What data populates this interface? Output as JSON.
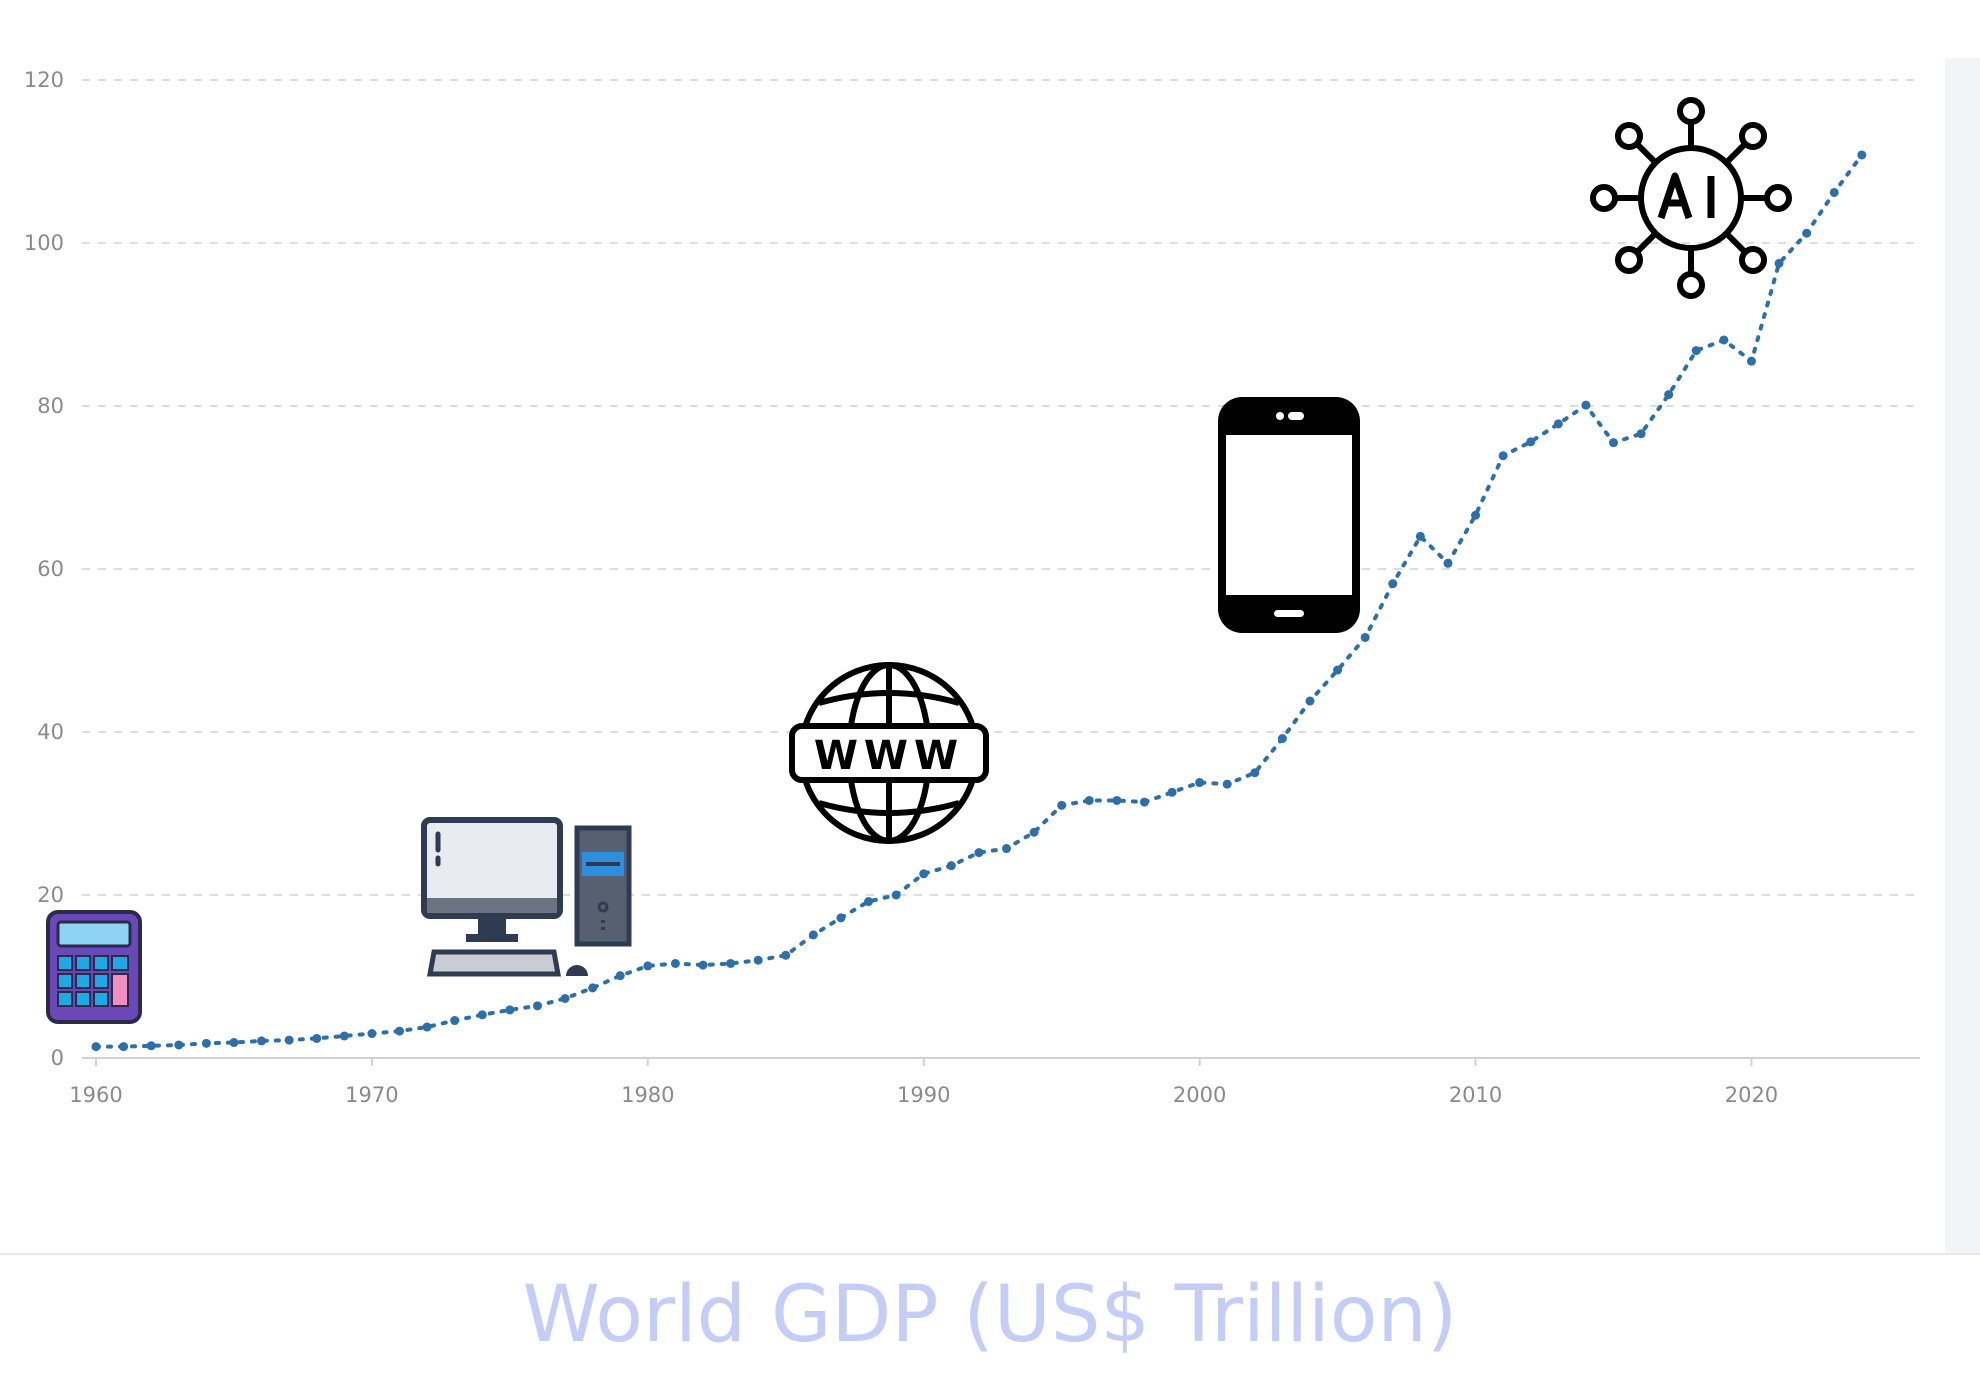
{
  "chart_data": {
    "type": "line",
    "title": "World GDP (US$ Trillion)",
    "xlabel": "",
    "ylabel": "",
    "xlim": [
      1960,
      2026
    ],
    "ylim": [
      0,
      120
    ],
    "x_ticks": [
      "1960",
      "1970",
      "1980",
      "1990",
      "2000",
      "2010",
      "2020"
    ],
    "y_ticks": [
      "0",
      "20",
      "40",
      "60",
      "80",
      "100",
      "120"
    ],
    "grid": true,
    "line_color": "#2e6fa8",
    "series": [
      {
        "x": [
          1960,
          1961,
          1962,
          1963,
          1964,
          1965,
          1966,
          1967,
          1968,
          1969,
          1970,
          1971,
          1972,
          1973,
          1974,
          1975,
          1976,
          1977,
          1978,
          1979,
          1980,
          1981,
          1982,
          1983,
          1984,
          1985,
          1986,
          1987,
          1988,
          1989,
          1990,
          1991,
          1992,
          1993,
          1994,
          1995,
          1996,
          1997,
          1998,
          1999,
          2000,
          2001,
          2002,
          2003,
          2004,
          2005,
          2006,
          2007,
          2008,
          2009,
          2010,
          2011,
          2012,
          2013,
          2014,
          2015,
          2016,
          2017,
          2018,
          2019,
          2020,
          2021,
          2022,
          2023,
          2024
        ],
        "y": [
          1.4,
          1.4,
          1.5,
          1.6,
          1.8,
          1.9,
          2.1,
          2.2,
          2.4,
          2.7,
          3.0,
          3.3,
          3.8,
          4.6,
          5.3,
          5.9,
          6.4,
          7.3,
          8.6,
          10.1,
          11.3,
          11.6,
          11.4,
          11.6,
          12.0,
          12.6,
          15.1,
          17.2,
          19.2,
          20.0,
          22.6,
          23.6,
          25.2,
          25.7,
          27.7,
          31.0,
          31.6,
          31.6,
          31.4,
          32.6,
          33.8,
          33.6,
          35.0,
          39.2,
          43.8,
          47.6,
          51.6,
          58.2,
          64.0,
          60.7,
          66.6,
          73.9,
          75.6,
          77.8,
          80.1,
          75.5,
          76.6,
          81.4,
          86.8,
          88.1,
          85.5,
          97.5,
          101.2,
          106.2,
          110.8
        ]
      }
    ],
    "annotations": [
      {
        "icon": "calculator-icon",
        "year": 1960
      },
      {
        "icon": "desktop-computer-icon",
        "year": 1975
      },
      {
        "icon": "www-globe-icon",
        "year": 1989
      },
      {
        "icon": "smartphone-icon",
        "year": 2003
      },
      {
        "icon": "ai-network-icon",
        "year": 2022
      }
    ]
  }
}
